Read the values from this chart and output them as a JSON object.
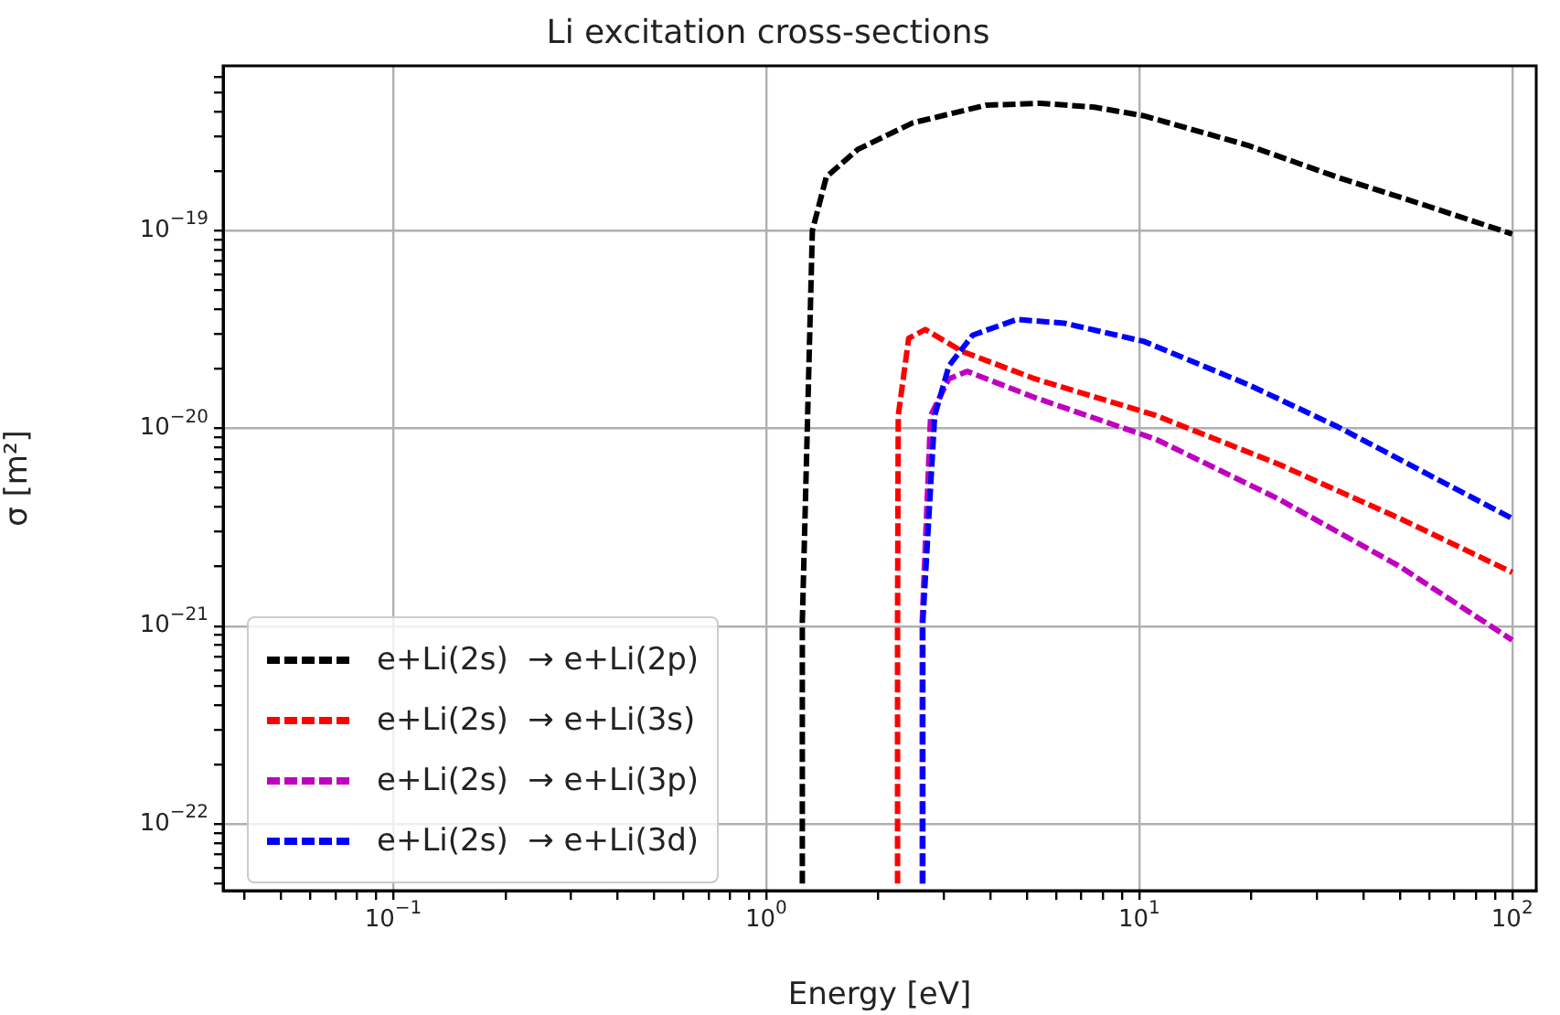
{
  "chart_data": {
    "type": "line",
    "title": "Li excitation cross-sections",
    "xlabel": "Energy [eV]",
    "ylabel": "σ [m²]",
    "log": "xy",
    "grid": true,
    "legend": "bottom left",
    "line_style": "dashed",
    "marker": "none",
    "xlim": [
      0.035,
      116
    ],
    "ylim": [
      4.6e-23,
      6.8e-19
    ],
    "xticks": [
      {
        "value": 0.04,
        "label": null
      },
      {
        "value": 0.05,
        "label": null
      },
      {
        "value": 0.06,
        "label": null
      },
      {
        "value": 0.07,
        "label": null
      },
      {
        "value": 0.08,
        "label": null
      },
      {
        "value": 0.09,
        "label": null
      },
      {
        "value": 0.1,
        "label": "10$^{−1}$"
      },
      {
        "value": 0.2,
        "label": null
      },
      {
        "value": 0.3,
        "label": null
      },
      {
        "value": 0.4,
        "label": null
      },
      {
        "value": 0.5,
        "label": null
      },
      {
        "value": 0.6,
        "label": null
      },
      {
        "value": 0.7,
        "label": null
      },
      {
        "value": 0.8,
        "label": null
      },
      {
        "value": 0.9,
        "label": null
      },
      {
        "value": 1,
        "label": "10$^{0}$"
      },
      {
        "value": 2,
        "label": null
      },
      {
        "value": 3,
        "label": null
      },
      {
        "value": 4,
        "label": null
      },
      {
        "value": 5,
        "label": null
      },
      {
        "value": 6,
        "label": null
      },
      {
        "value": 7,
        "label": null
      },
      {
        "value": 8,
        "label": null
      },
      {
        "value": 9,
        "label": null
      },
      {
        "value": 10,
        "label": "10$^{1}$"
      },
      {
        "value": 20,
        "label": null
      },
      {
        "value": 30,
        "label": null
      },
      {
        "value": 40,
        "label": null
      },
      {
        "value": 50,
        "label": null
      },
      {
        "value": 60,
        "label": null
      },
      {
        "value": 70,
        "label": null
      },
      {
        "value": 80,
        "label": null
      },
      {
        "value": 90,
        "label": null
      },
      {
        "value": 100,
        "label": "10$^{2}$"
      }
    ],
    "yticks": [
      {
        "value": 5e-23,
        "label": null
      },
      {
        "value": 6e-23,
        "label": null
      },
      {
        "value": 7e-23,
        "label": null
      },
      {
        "value": 8e-23,
        "label": null
      },
      {
        "value": 9e-23,
        "label": null
      },
      {
        "value": 1e-22,
        "label": "10$^{−22}$"
      },
      {
        "value": 2e-22,
        "label": null
      },
      {
        "value": 3e-22,
        "label": null
      },
      {
        "value": 4e-22,
        "label": null
      },
      {
        "value": 5e-22,
        "label": null
      },
      {
        "value": 6e-22,
        "label": null
      },
      {
        "value": 7e-22,
        "label": null
      },
      {
        "value": 8e-22,
        "label": null
      },
      {
        "value": 9e-22,
        "label": null
      },
      {
        "value": 1e-21,
        "label": "10$^{−21}$"
      },
      {
        "value": 2e-21,
        "label": null
      },
      {
        "value": 3e-21,
        "label": null
      },
      {
        "value": 4e-21,
        "label": null
      },
      {
        "value": 5e-21,
        "label": null
      },
      {
        "value": 6e-21,
        "label": null
      },
      {
        "value": 7e-21,
        "label": null
      },
      {
        "value": 8e-21,
        "label": null
      },
      {
        "value": 9e-21,
        "label": null
      },
      {
        "value": 1e-20,
        "label": "10$^{−20}$"
      },
      {
        "value": 2e-20,
        "label": null
      },
      {
        "value": 3e-20,
        "label": null
      },
      {
        "value": 4e-20,
        "label": null
      },
      {
        "value": 5e-20,
        "label": null
      },
      {
        "value": 6e-20,
        "label": null
      },
      {
        "value": 7e-20,
        "label": null
      },
      {
        "value": 8e-20,
        "label": null
      },
      {
        "value": 9e-20,
        "label": null
      },
      {
        "value": 1e-19,
        "label": "10$^{−19}$"
      },
      {
        "value": 2e-19,
        "label": null
      },
      {
        "value": 3e-19,
        "label": null
      },
      {
        "value": 4e-19,
        "label": null
      },
      {
        "value": 5e-19,
        "label": null
      },
      {
        "value": 6e-19,
        "label": null
      }
    ],
    "series": [
      {
        "name": "e+Li(2s)  → e+Li(2p)",
        "color": "#000000",
        "x": [
          1.25,
          1.25,
          1.33,
          1.45,
          1.76,
          2.47,
          3.88,
          5.43,
          7.6,
          10.3,
          19.5,
          34,
          60,
          100
        ],
        "values": [
          5e-23,
          1.05e-21,
          1e-19,
          1.87e-19,
          2.57e-19,
          3.5e-19,
          4.3e-19,
          4.4e-19,
          4.2e-19,
          3.8e-19,
          2.7e-19,
          1.86e-19,
          1.32e-19,
          9.6e-20
        ]
      },
      {
        "name": "e+Li(2s)  → e+Li(3s)",
        "color": "#ff0000",
        "x": [
          2.25,
          2.25,
          2.26,
          2.41,
          2.67,
          3.35,
          5.25,
          11.1,
          23.6,
          50,
          100
        ],
        "values": [
          5e-23,
          1.05e-21,
          1.16e-20,
          2.85e-20,
          3.16e-20,
          2.45e-20,
          1.78e-20,
          1.16e-20,
          6.6e-21,
          3.5e-21,
          1.87e-21
        ]
      },
      {
        "name": "e+Li(2s)  → e+Li(3p)",
        "color": "#bf00bf",
        "x": [
          2.62,
          2.62,
          2.76,
          3.09,
          3.46,
          5.25,
          11.1,
          23.6,
          50,
          100
        ],
        "values": [
          5e-23,
          1.05e-21,
          1.16e-20,
          1.78e-20,
          1.94e-20,
          1.43e-20,
          8.8e-21,
          4.4e-21,
          2e-21,
          8.5e-22
        ]
      },
      {
        "name": "e+Li(2s)  → e+Li(3d)",
        "color": "#0000ff",
        "x": [
          2.63,
          2.63,
          2.83,
          3.09,
          3.58,
          4.7,
          6.3,
          10.3,
          19.5,
          34,
          60,
          100
        ],
        "values": [
          5e-23,
          1.05e-21,
          1.16e-20,
          2.07e-20,
          2.96e-20,
          3.55e-20,
          3.4e-20,
          2.75e-20,
          1.67e-20,
          1.02e-20,
          5.8e-21,
          3.5e-21
        ]
      }
    ]
  }
}
